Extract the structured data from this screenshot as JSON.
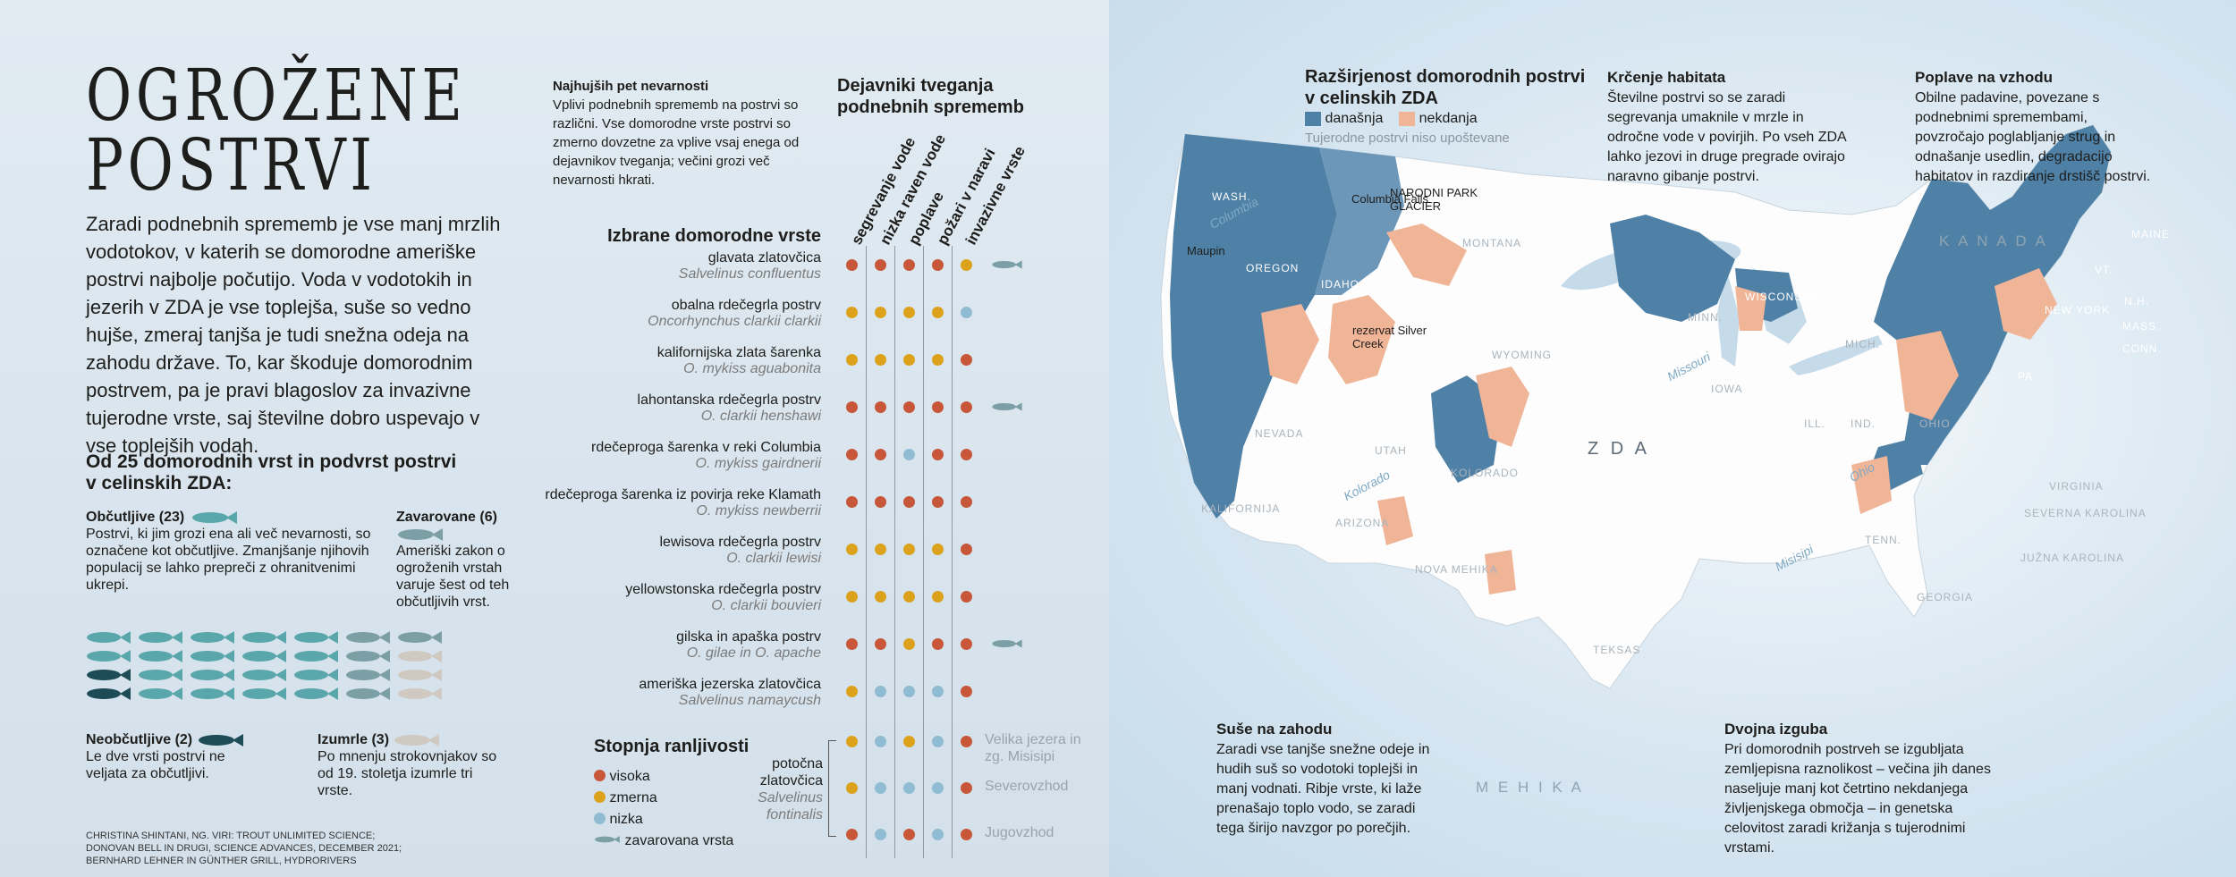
{
  "title_lines": [
    "OGROŽENE",
    "POSTRVI"
  ],
  "lead": "Zaradi podnebnih sprememb je vse manj mrzlih vodotokov, v katerih se domorodne ameriške postrvi najbolje počutijo. Voda v vodotokih in jezerih v ZDA je vse toplejša, suše so vedno hujše, zmeraj tanjša je tudi snežna odeja na zahodu države. To, kar škoduje domorodnim postrvem, pa je pravi blagoslov za invazivne tujerodne vrste, saj številne dobro uspevajo v vse toplejših vodah.",
  "species_count_heading": "Od 25 domorodnih vrst in podvrst postrvi v celinskih ZDA:",
  "categories": {
    "vulnerable": {
      "label": "Občutljive (23)",
      "text": "Postrvi, ki jim grozi ena ali več nevarnosti, so označene kot občutljive. Zmanjšanje njihovih populacij se lahko prepreči z ohranitvenimi ukrepi."
    },
    "protected": {
      "label": "Zavarovane (6)",
      "text": "Ameriški zakon o ogroženih vrstah varuje šest od teh občutljivih vrst."
    },
    "insensitive": {
      "label": "Neobčutljive (2)",
      "text": "Le dve vrsti postrvi ne veljata za občutljivi."
    },
    "extinct": {
      "label": "Izumrle (3)",
      "text": "Po mnenju strokovnjakov so od 19. stoletja izumrle tri vrste."
    }
  },
  "credits": [
    "CHRISTINA SHINTANI, NG. VIRI: TROUT UNLIMITED SCIENCE;",
    "DONOVAN BELL IN DRUGI, SCIENCE ADVANCES, DECEMBER 2021;",
    "BERNHARD LEHNER IN GÜNTHER GRILL, HYDRORIVERS"
  ],
  "top_five": {
    "heading": "Najhujših pet nevarnosti",
    "text": "Vplivi podnebnih sprememb na postrvi so različni. Vse domorodne vrste postrvi so zmerno dovzetne za vplive vsaj enega od dejavnikov tveganja; večini grozi več nevarnosti hkrati."
  },
  "risk_heading": "Dejavniki tveganja podnebnih sprememb",
  "risk_factors": [
    "segrevanje vode",
    "nizka raven vode",
    "poplave",
    "požari v naravi",
    "invazivne vrste"
  ],
  "species_heading": "Izbrane domorodne vrste",
  "species": [
    {
      "name": "glavata zlatovčica",
      "latin": "Salvelinus confluentus",
      "levels": [
        "v",
        "v",
        "v",
        "v",
        "z"
      ],
      "protected": true
    },
    {
      "name": "obalna rdečegrla postrv",
      "latin": "Oncorhynchus clarkii clarkii",
      "levels": [
        "z",
        "z",
        "z",
        "z",
        "n"
      ],
      "protected": false
    },
    {
      "name": "kalifornijska zlata šarenka",
      "latin": "O. mykiss aguabonita",
      "levels": [
        "z",
        "z",
        "z",
        "z",
        "v"
      ],
      "protected": false
    },
    {
      "name": "lahontanska rdečegrla postrv",
      "latin": "O. clarkii henshawi",
      "levels": [
        "v",
        "v",
        "v",
        "v",
        "v"
      ],
      "protected": true
    },
    {
      "name": "rdečeproga šarenka v reki Columbia",
      "latin": "O. mykiss gairdnerii",
      "levels": [
        "v",
        "v",
        "n",
        "v",
        "v"
      ],
      "protected": false
    },
    {
      "name": "rdečeproga šarenka iz povirja reke Klamath",
      "latin": "O. mykiss newberrii",
      "levels": [
        "v",
        "v",
        "v",
        "v",
        "v"
      ],
      "protected": false
    },
    {
      "name": "lewisova rdečegrla postrv",
      "latin": "O. clarkii lewisi",
      "levels": [
        "z",
        "z",
        "z",
        "z",
        "v"
      ],
      "protected": false
    },
    {
      "name": "yellowstonska rdečegrla postrv",
      "latin": "O. clarkii bouvieri",
      "levels": [
        "z",
        "z",
        "z",
        "z",
        "v"
      ],
      "protected": false
    },
    {
      "name": "gilska in apaška postrv",
      "latin": "O. gilae in O. apache",
      "levels": [
        "v",
        "v",
        "z",
        "v",
        "v"
      ],
      "protected": true
    },
    {
      "name": "ameriška jezerska zlatovčica",
      "latin": "Salvelinus namaycush",
      "levels": [
        "z",
        "n",
        "n",
        "n",
        "v"
      ],
      "protected": false
    }
  ],
  "brook": {
    "name_lines": [
      "potočna",
      "zlatovčica"
    ],
    "latin_lines": [
      "Salvelinus",
      "fontinalis"
    ],
    "rows": [
      {
        "region": "Velika jezera in zg. Misisipi",
        "levels": [
          "z",
          "n",
          "z",
          "n",
          "v"
        ]
      },
      {
        "region": "Severovzhod",
        "levels": [
          "z",
          "n",
          "n",
          "n",
          "v"
        ]
      },
      {
        "region": "Jugovzhod",
        "levels": [
          "v",
          "n",
          "v",
          "n",
          "v"
        ]
      }
    ]
  },
  "legend": {
    "heading": "Stopnja ranljivosti",
    "high": "visoka",
    "moderate": "zmerna",
    "low": "nizka",
    "protected": "zavarovana vrsta"
  },
  "map": {
    "heading": "Razširjenost domorodnih postrvi v celinskih ZDA",
    "current": "današnja",
    "historic": "nekdanja",
    "note": "Tujerodne postrvi niso upoštevane",
    "labels": {
      "usa": "Z D A",
      "canada": "K A N A D A",
      "mexico": "M E H I K A",
      "wash": "WASH.",
      "oregon": "OREGON",
      "idaho": "IDAHO",
      "montana": "MONTANA",
      "wyoming": "WYOMING",
      "nevada": "NEVADA",
      "utah": "UTAH",
      "kolorado": "KOLORADO",
      "kalifornija": "KALIFORNIJA",
      "arizona": "ARIZONA",
      "nova_mehika": "NOVA MEHIKA",
      "teksas": "TEKSAS",
      "iowa": "IOWA",
      "ill": "ILL.",
      "ind": "IND.",
      "ohio": "OHIO",
      "tenn": "TENN.",
      "georgia": "GEORGIA",
      "wisconsin": "WISCONSIN",
      "minn": "MINN.",
      "mich": "MICH.",
      "pa": "PA.",
      "ny": "NEW YORK",
      "maine": "MAINE",
      "vt": "VT.",
      "nh": "N.H.",
      "mass": "MASS.",
      "conn": "CONN.",
      "virginia": "VIRGINIA",
      "sev_karolina": "SEVERNA KAROLINA",
      "juz_karolina": "JUŽNA KAROLINA",
      "columbia": "Columbia",
      "missouri": "Missouri",
      "mississippi": "Misisipi",
      "ohio_river": "Ohio",
      "colorado_river": "Kolorado",
      "maupin": "Maupin",
      "columbia_falls": "Columbia Falls",
      "glacier": "NARODNI PARK GLACIER",
      "silver_creek": "rezervat Silver Creek"
    }
  },
  "boxes": {
    "habitat": {
      "heading": "Krčenje habitata",
      "text": "Številne postrvi so se zaradi segrevanja umaknile v mrzle in odročne vode v povirjih. Po vseh ZDA lahko jezovi in druge pregrade ovirajo naravno gibanje postrvi."
    },
    "floods": {
      "heading": "Poplave na vzhodu",
      "text": "Obilne padavine, povezane s podnebnimi spremembami, povzročajo poglabljanje strug in odnašanje usedlin, degradacijo habitatov in razdiranje drstišč postrvi."
    },
    "drought": {
      "heading": "Suše na zahodu",
      "text": "Zaradi vse tanjše snežne odeje in hudih suš so vodotoki toplejši in manj vodnati. Ribje vrste, ki laže prenašajo toplo vodo, se zaradi tega širijo navzgor po porečjih."
    },
    "double": {
      "heading": "Dvojna izguba",
      "text": "Pri domorodnih postrveh se izgubljata zemljepisna raznolikost – večina jih danes naseljuje manj kot četrtino nekdanjega življenjskega območja – in genetska celovitost zaradi križanja s tujerodnimi vrstami."
    }
  },
  "colors": {
    "current": "#4f80a6",
    "historic": "#f0b497",
    "high": "#c8573a",
    "moderate": "#dda21c",
    "low": "#8fbcd2",
    "fish_vuln": "#5aa7ab",
    "fish_prot": "#7c9fa6",
    "fish_ins": "#1d4c56",
    "fish_ext": "#cfc9c2"
  }
}
